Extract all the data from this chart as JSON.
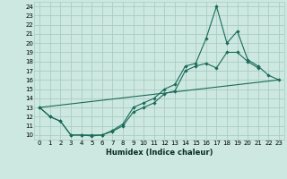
{
  "bg_color": "#cce8e0",
  "grid_color": "#aaccc4",
  "line_color": "#1a6a5a",
  "xlabel": "Humidex (Indice chaleur)",
  "xlim": [
    -0.5,
    23.5
  ],
  "ylim": [
    9.5,
    24.5
  ],
  "xticks": [
    0,
    1,
    2,
    3,
    4,
    5,
    6,
    7,
    8,
    9,
    10,
    11,
    12,
    13,
    14,
    15,
    16,
    17,
    18,
    19,
    20,
    21,
    22,
    23
  ],
  "yticks": [
    10,
    11,
    12,
    13,
    14,
    15,
    16,
    17,
    18,
    19,
    20,
    21,
    22,
    23,
    24
  ],
  "line1_x": [
    0,
    1,
    2,
    3,
    4,
    5,
    6,
    7,
    8,
    9,
    10,
    11,
    12,
    13,
    14,
    15,
    16,
    17,
    18,
    19,
    20,
    21
  ],
  "line1_y": [
    13,
    12,
    11.5,
    10,
    10,
    10,
    10,
    10.4,
    11,
    12.5,
    13,
    13.5,
    14.5,
    14.8,
    17,
    17.5,
    17.8,
    17.3,
    19,
    19,
    18,
    17.3
  ],
  "line2_x": [
    0,
    1,
    2,
    3,
    4,
    5,
    6,
    7,
    8,
    9,
    10,
    11,
    12,
    13,
    14,
    15,
    16,
    17,
    18,
    19,
    20,
    21,
    22,
    23
  ],
  "line2_y": [
    13,
    12,
    11.5,
    10,
    10,
    9.9,
    10,
    10.5,
    11.2,
    13.0,
    13.5,
    14.0,
    15.0,
    15.5,
    17.5,
    17.8,
    20.5,
    24.0,
    20,
    21.3,
    18.2,
    17.5,
    16.5,
    16.0
  ],
  "line3_x": [
    0,
    23
  ],
  "line3_y": [
    13,
    16
  ]
}
